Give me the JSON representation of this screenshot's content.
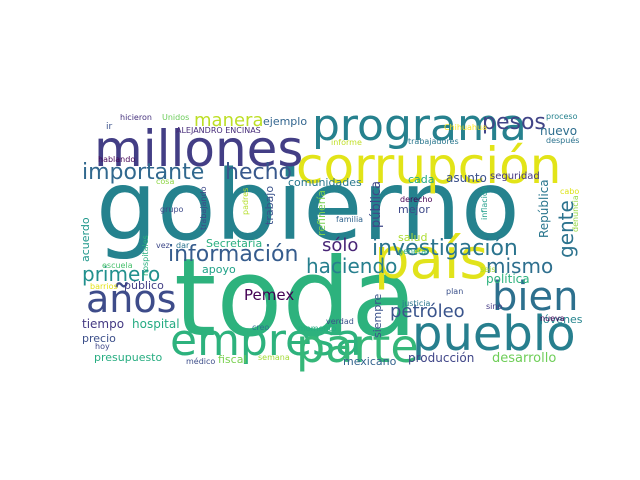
{
  "words": [
    {
      "text": "gobierno",
      "color": "#25828e"
    },
    {
      "text": "toda",
      "color": "#2db27d"
    },
    {
      "text": "corrupción",
      "color": "#e2e418"
    },
    {
      "text": "millones",
      "color": "#433e85"
    },
    {
      "text": "programa",
      "color": "#26818e"
    },
    {
      "text": "país",
      "color": "#e1e31b"
    },
    {
      "text": "empresa",
      "color": "#2db27d"
    },
    {
      "text": "pueblo",
      "color": "#277f8e"
    },
    {
      "text": "parte",
      "color": "#35b779"
    },
    {
      "text": "años",
      "color": "#3e4c8a"
    },
    {
      "text": "bien",
      "color": "#2d708e"
    },
    {
      "text": "importante",
      "color": "#31688e"
    },
    {
      "text": "hecho",
      "color": "#38588c"
    },
    {
      "text": "información",
      "color": "#365c8d"
    },
    {
      "text": "investigación",
      "color": "#2b748e"
    },
    {
      "text": "pesos",
      "color": "#414487"
    },
    {
      "text": "manera",
      "color": "#bddf26"
    },
    {
      "text": "primero",
      "color": "#21908d"
    },
    {
      "text": "haciendo",
      "color": "#277f8e"
    },
    {
      "text": "mismo",
      "color": "#2e6f8e"
    },
    {
      "text": "petróleo",
      "color": "#3a548c"
    },
    {
      "text": "sólo",
      "color": "#482576"
    },
    {
      "text": "Pemex",
      "color": "#440154"
    },
    {
      "text": "gente",
      "color": "#2c738e"
    },
    {
      "text": "nuevo",
      "color": "#2e6e8e"
    },
    {
      "text": "política",
      "color": "#2db27d"
    },
    {
      "text": "comunidades",
      "color": "#2a788e"
    },
    {
      "text": "asunto",
      "color": "#3b518b"
    },
    {
      "text": "cada",
      "color": "#22a884"
    },
    {
      "text": "mejor",
      "color": "#3e4989"
    },
    {
      "text": "pública",
      "color": "#3f4788"
    },
    {
      "text": "República",
      "color": "#2a768e"
    },
    {
      "text": "trabajo",
      "color": "#3b528b"
    },
    {
      "text": "ejemplo",
      "color": "#32658e"
    },
    {
      "text": "tiempo",
      "color": "#443983"
    },
    {
      "text": "hospital",
      "color": "#25ab82"
    },
    {
      "text": "precio",
      "color": "#3c4f8a"
    },
    {
      "text": "presupuesto",
      "color": "#27ad81"
    },
    {
      "text": "producción",
      "color": "#404688"
    },
    {
      "text": "desarrollo",
      "color": "#6ece58"
    },
    {
      "text": "jóvenes",
      "color": "#25848e"
    },
    {
      "text": "siempre",
      "color": "#3b528b"
    },
    {
      "text": "mexicano",
      "color": "#33638d"
    },
    {
      "text": "fiscal",
      "color": "#7ad151"
    },
    {
      "text": "público",
      "color": "#423f85"
    },
    {
      "text": "apoyo",
      "color": "#1fa187"
    },
    {
      "text": "Secretaría",
      "color": "#29af7f"
    },
    {
      "text": "acuerdo",
      "color": "#1f978b"
    },
    {
      "text": "salud",
      "color": "#addc30"
    },
    {
      "text": "seguridad",
      "color": "#453882"
    },
    {
      "text": "refinería",
      "color": "#7ad151"
    },
    {
      "text": "proceso",
      "color": "#26828e"
    },
    {
      "text": "trabajadores",
      "color": "#2a778e"
    },
    {
      "text": "después",
      "color": "#2c738e"
    },
    {
      "text": "ALEJANDRO ENCINAS",
      "color": "#472c7a"
    },
    {
      "text": "hablando",
      "color": "#450457"
    },
    {
      "text": "hicieron",
      "color": "#46327e"
    },
    {
      "text": "Unidos",
      "color": "#6ccd5a"
    },
    {
      "text": "ir",
      "color": "#3b528b"
    },
    {
      "text": "Chihuahua",
      "color": "#fde725"
    },
    {
      "text": "informe",
      "color": "#c0df25"
    },
    {
      "text": "cosa",
      "color": "#8ed645"
    },
    {
      "text": "trabajando",
      "color": "#3f4889"
    },
    {
      "text": "grupo",
      "color": "#3e4a89"
    },
    {
      "text": "padres",
      "color": "#b5de2b"
    },
    {
      "text": "familia",
      "color": "#32648e"
    },
    {
      "text": "derecho",
      "color": "#440154"
    },
    {
      "text": "inflación",
      "color": "#1e9c89"
    },
    {
      "text": "cabo",
      "color": "#dde318"
    },
    {
      "text": "denuncia",
      "color": "#93d741"
    },
    {
      "text": "hospitales",
      "color": "#2ab07f"
    },
    {
      "text": "vez",
      "color": "#3e4989"
    },
    {
      "text": "dar",
      "color": "#2c738e"
    },
    {
      "text": "escuela",
      "color": "#48c16e"
    },
    {
      "text": "general",
      "color": "#29af7f"
    },
    {
      "text": "plan",
      "color": "#3b518b"
    },
    {
      "text": "seis",
      "color": "#a5db36"
    },
    {
      "text": "verdad",
      "color": "#3b528b"
    },
    {
      "text": "justicia",
      "color": "#2a768e"
    },
    {
      "text": "sino",
      "color": "#443983"
    },
    {
      "text": "nueva",
      "color": "#440154"
    },
    {
      "text": "barrios",
      "color": "#e5e419"
    },
    {
      "text": "hoy",
      "color": "#3f4788"
    },
    {
      "text": "creo",
      "color": "#2c738e"
    },
    {
      "text": "momento",
      "color": "#26ad81"
    },
    {
      "text": "médico",
      "color": "#3d4e8a"
    },
    {
      "text": "semana",
      "color": "#a2da37"
    }
  ]
}
